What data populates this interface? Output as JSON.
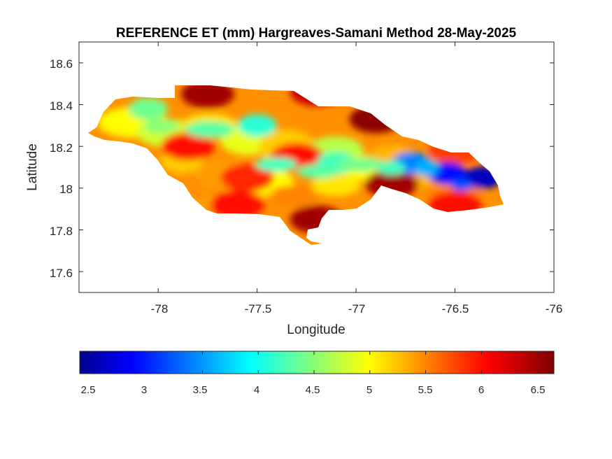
{
  "title": "REFERENCE ET (mm) Hargreaves-Samani Method  28-May-2025",
  "xlabel": "Longitude",
  "ylabel": "Latitude",
  "x_ticks": [
    "-78",
    "-77.5",
    "-77",
    "-76.5",
    "-76"
  ],
  "y_ticks": [
    "18.6",
    "18.4",
    "18.2",
    "18",
    "17.8",
    "17.6"
  ],
  "colorbar_ticks": [
    "2.5",
    "3",
    "3.5",
    "4",
    "4.5",
    "5",
    "5.5",
    "6",
    "6.5"
  ],
  "chart_data": {
    "type": "heatmap",
    "title": "REFERENCE ET (mm) Hargreaves-Samani Method  28-May-2025",
    "xlabel": "Longitude",
    "ylabel": "Latitude",
    "xlim": [
      -78.4,
      -76
    ],
    "ylim": [
      17.5,
      18.7
    ],
    "colormap": "jet",
    "clim": [
      2.4,
      6.65
    ],
    "region": "Jamaica",
    "grid": false,
    "colorbar": "bottom",
    "hotspots": [
      {
        "lon": -77.75,
        "lat": 18.45,
        "value": 6.5
      },
      {
        "lon": -77.2,
        "lat": 18.46,
        "value": 6.3
      },
      {
        "lon": -76.9,
        "lat": 18.33,
        "value": 6.6
      },
      {
        "lon": -77.2,
        "lat": 17.85,
        "value": 6.5
      },
      {
        "lon": -77.85,
        "lat": 18.2,
        "value": 6.0
      },
      {
        "lon": -77.55,
        "lat": 18.05,
        "value": 5.9
      },
      {
        "lon": -77.3,
        "lat": 18.15,
        "value": 6.0
      },
      {
        "lon": -77.6,
        "lat": 17.92,
        "value": 6.0
      },
      {
        "lon": -76.82,
        "lat": 18.02,
        "value": 6.5
      },
      {
        "lon": -76.5,
        "lat": 18.18,
        "value": 5.8
      },
      {
        "lon": -76.5,
        "lat": 17.92,
        "value": 6.0
      }
    ],
    "coldspots": [
      {
        "lon": -76.36,
        "lat": 18.05,
        "value": 2.6
      },
      {
        "lon": -76.54,
        "lat": 18.07,
        "value": 2.9
      },
      {
        "lon": -76.72,
        "lat": 18.12,
        "value": 3.4
      },
      {
        "lon": -77.5,
        "lat": 18.3,
        "value": 4.1
      },
      {
        "lon": -77.1,
        "lat": 18.12,
        "value": 4.2
      },
      {
        "lon": -78.05,
        "lat": 18.38,
        "value": 4.4
      }
    ]
  }
}
